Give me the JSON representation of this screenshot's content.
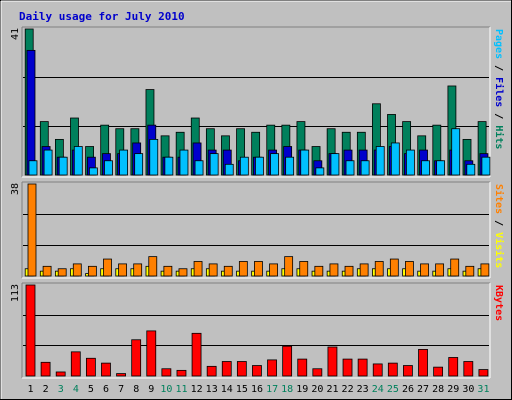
{
  "chart_data": {
    "type": "bar",
    "title": "Daily usage for July 2010",
    "categories": [
      "1",
      "2",
      "3",
      "4",
      "5",
      "6",
      "7",
      "8",
      "9",
      "10",
      "11",
      "12",
      "13",
      "14",
      "15",
      "16",
      "17",
      "18",
      "19",
      "20",
      "21",
      "22",
      "23",
      "24",
      "25",
      "26",
      "27",
      "28",
      "29",
      "30",
      "31"
    ],
    "weekend_days": [
      "3",
      "4",
      "10",
      "11",
      "17",
      "18",
      "24",
      "25",
      "31"
    ],
    "colors": {
      "background": "#c0c0c0",
      "title": "#0000cc",
      "hits": "#00805c",
      "files": "#0000cc",
      "pages": "#00c0ff",
      "visits": "#ffff00",
      "sites": "#ff8000",
      "kbytes": "#ff0000",
      "day_weekday": "#000000",
      "day_weekend": "#00805c"
    },
    "panels": [
      {
        "ymax_label": "41",
        "ylim": [
          0,
          41
        ],
        "legend": [
          {
            "text": "Pages",
            "color": "#00c0ff"
          },
          {
            "text": " / ",
            "color": "#000000"
          },
          {
            "text": "Files",
            "color": "#0000cc"
          },
          {
            "text": " / ",
            "color": "#000000"
          },
          {
            "text": "Hits",
            "color": "#00805c"
          }
        ],
        "series": [
          {
            "name": "Hits",
            "color": "#00805c",
            "values": [
              41,
              15,
              10,
              16,
              8,
              14,
              13,
              13,
              24,
              11,
              12,
              16,
              13,
              11,
              13,
              12,
              14,
              14,
              15,
              8,
              13,
              12,
              12,
              20,
              17,
              15,
              11,
              14,
              25,
              10,
              15
            ]
          },
          {
            "name": "Files",
            "color": "#0000cc",
            "values": [
              35,
              8,
              5,
              7,
              5,
              6,
              6,
              9,
              14,
              5,
              5,
              9,
              7,
              7,
              4,
              5,
              7,
              8,
              7,
              4,
              6,
              7,
              7,
              7,
              8,
              6,
              7,
              4,
              7,
              4,
              6
            ]
          },
          {
            "name": "Pages",
            "color": "#00c0ff",
            "values": [
              4,
              7,
              5,
              8,
              2,
              4,
              7,
              6,
              10,
              5,
              7,
              4,
              6,
              3,
              5,
              5,
              6,
              5,
              7,
              2,
              6,
              4,
              4,
              8,
              9,
              7,
              4,
              4,
              13,
              3,
              5
            ]
          }
        ]
      },
      {
        "ymax_label": "38",
        "ylim": [
          0,
          38
        ],
        "legend": [
          {
            "text": "Sites",
            "color": "#ff8000"
          },
          {
            "text": " / ",
            "color": "#000000"
          },
          {
            "text": "Visits",
            "color": "#ffff00"
          }
        ],
        "series": [
          {
            "name": "Visits",
            "color": "#ffff00",
            "values": [
              3,
              2,
              2,
              3,
              1,
              3,
              3,
              3,
              4,
              2,
              2,
              3,
              3,
              2,
              2,
              2,
              2,
              3,
              3,
              2,
              2,
              2,
              3,
              3,
              3,
              3,
              2,
              2,
              3,
              2,
              3
            ]
          },
          {
            "name": "Sites",
            "color": "#ff8000",
            "values": [
              38,
              4,
              3,
              5,
              4,
              7,
              5,
              5,
              8,
              4,
              3,
              6,
              5,
              4,
              6,
              6,
              5,
              8,
              6,
              4,
              5,
              4,
              5,
              6,
              7,
              6,
              5,
              5,
              7,
              4,
              5
            ]
          }
        ]
      },
      {
        "ymax_label": "113",
        "ylim": [
          0,
          113
        ],
        "legend": [
          {
            "text": "KBytes",
            "color": "#ff0000"
          }
        ],
        "series": [
          {
            "name": "KBytes",
            "color": "#ff0000",
            "values": [
              113,
              17,
              5,
              30,
              22,
              16,
              3,
              45,
              56,
              9,
              7,
              53,
              12,
              18,
              18,
              13,
              20,
              37,
              21,
              9,
              36,
              21,
              21,
              15,
              16,
              13,
              33,
              11,
              23,
              18,
              8
            ]
          }
        ]
      }
    ]
  }
}
